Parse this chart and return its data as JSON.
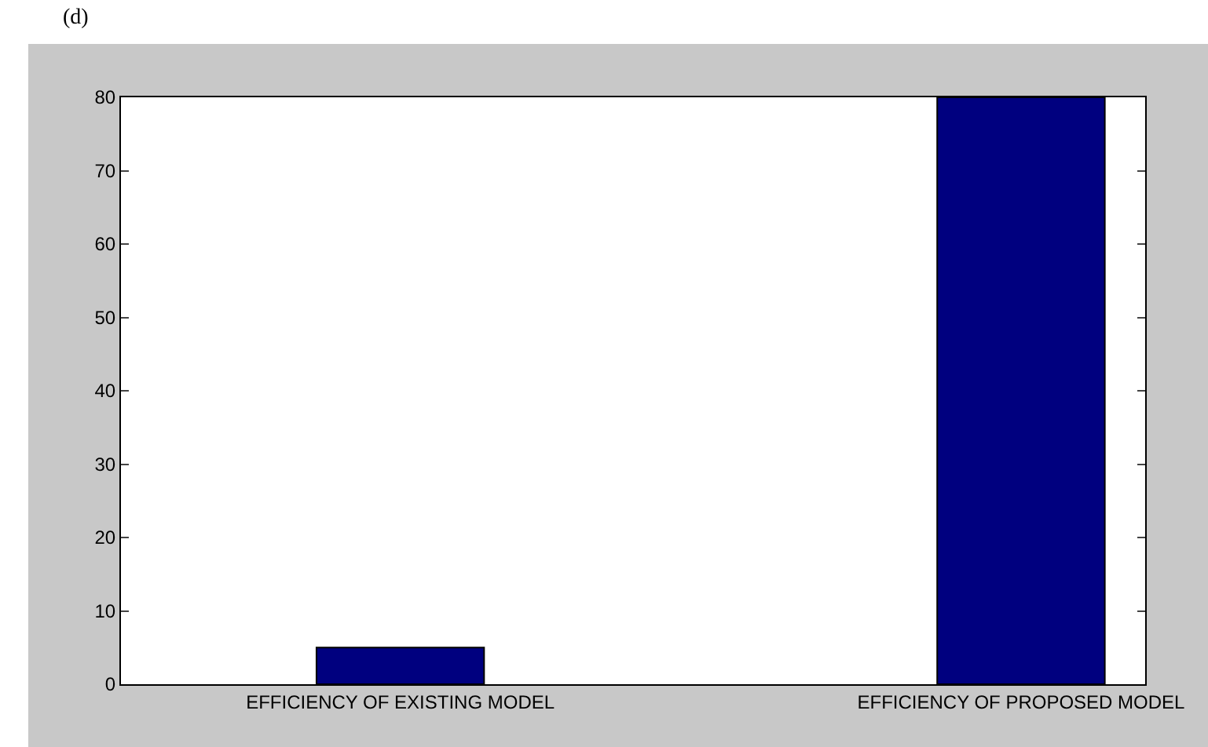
{
  "chart_data": {
    "type": "bar",
    "annotations": [
      "(d)"
    ],
    "categories": [
      "EFFICIENCY OF EXISTING MODEL",
      "EFFICIENCY OF PROPOSED MODEL"
    ],
    "values": [
      5,
      80
    ],
    "color": "#00007f",
    "ylim": [
      0,
      80
    ],
    "yticks": [
      0,
      10,
      20,
      30,
      40,
      50,
      60,
      70,
      80
    ]
  }
}
